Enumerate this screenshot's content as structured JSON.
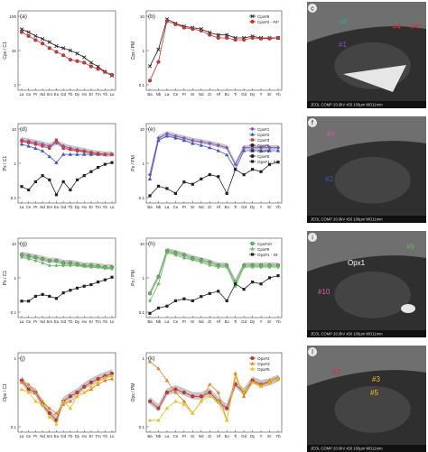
{
  "colors": {
    "black": "#222222",
    "red": "#d9312b",
    "blue": "#3a55c8",
    "purple": "#8b4fc0",
    "orange": "#e57f22",
    "green": "#62b85a",
    "teal": "#2ea79a",
    "yellow": "#e8c21a",
    "pink": "#d35bb0",
    "gray_band": "#9a9a9a",
    "sem_dark": "#2f2f2f"
  },
  "ree_ticks": [
    "La",
    "Ce",
    "Pr",
    "Nd",
    "Sm",
    "Eu",
    "Gd",
    "Tb",
    "Dy",
    "Ho",
    "Er",
    "Tm",
    "Yb",
    "Lu"
  ],
  "spider_ticks": [
    "Ba",
    "Nb",
    "La",
    "Ce",
    "Pr",
    "Sr",
    "Nd",
    "Zr",
    "Hf",
    "Eu",
    "Ti",
    "Gd",
    "Dy",
    "Y",
    "Er",
    "Yb"
  ],
  "panels": {
    "a": {
      "letter": "(a)",
      "ylabel": "Cpx / C1",
      "yticks": [
        "100",
        "10",
        "1"
      ]
    },
    "b": {
      "letter": "(b)",
      "ylabel": "Cpx / PM",
      "yticks": [
        "10",
        "1",
        "0.1"
      ]
    },
    "d": {
      "letter": "(d)",
      "ylabel": "Px / C1",
      "yticks": [
        "10",
        "1",
        "0.1"
      ]
    },
    "e": {
      "letter": "(e)",
      "ylabel": "Px / PM",
      "yticks": [
        "10",
        "1",
        "0.1"
      ]
    },
    "g": {
      "letter": "(g)",
      "ylabel": "Px / C1",
      "yticks": [
        "10",
        "1",
        "0.1"
      ]
    },
    "h": {
      "letter": "(h)",
      "ylabel": "Px / PM",
      "yticks": [
        "10",
        "1",
        "0.1"
      ]
    },
    "j": {
      "letter": "(j)",
      "ylabel": "Opx / C1",
      "yticks": [
        "1",
        "0.1"
      ]
    },
    "k": {
      "letter": "(k)",
      "ylabel": "Opx / PM",
      "yticks": [
        "1",
        "0.1"
      ]
    }
  },
  "legends": {
    "b": [
      "Cpx#8",
      "Cpx#4 - #4*"
    ],
    "e": [
      "Cpx#1",
      "Cpx#2",
      "Cpx#3",
      "Cpx#6",
      "Cpx#8",
      "Cpx#5",
      "Opx#1 - #4"
    ],
    "h": [
      "Cpx#10",
      "Cpx#9",
      "Opx#1 - #4"
    ],
    "k": [
      "Opx#2",
      "Opx#3",
      "Opx#5"
    ]
  },
  "sem": {
    "c": {
      "letter": "c",
      "labels": [
        "#8",
        "#4",
        "#4*",
        "#1"
      ],
      "footer": "JEOL COMP 20.0kV x50 100µm WD11mm"
    },
    "f": {
      "letter": "f",
      "labels": [
        "#1",
        "#2"
      ],
      "footer": "JEOL COMP 20.0kV x50 100µm WD11mm"
    },
    "i": {
      "letter": "i",
      "labels": [
        "Opx1",
        "#9",
        "#10"
      ],
      "footer": "JEOL COMP 20.0kV x50 100µm WD11mm"
    },
    "l": {
      "letter": "l",
      "labels": [
        "#2",
        "#3",
        "#5"
      ],
      "footer": "JEOL COMP 20.0kV x50 100µm WD11mm"
    }
  },
  "chart_data": [
    {
      "panel": "a",
      "type": "line",
      "x": [
        "La",
        "Ce",
        "Pr",
        "Nd",
        "Sm",
        "Eu",
        "Gd",
        "Tb",
        "Dy",
        "Ho",
        "Er",
        "Tm",
        "Yb",
        "Lu"
      ],
      "ylim": [
        0.5,
        200
      ],
      "log": true,
      "series": [
        {
          "name": "Cpx#8",
          "values": [
            50,
            40,
            30,
            24,
            19,
            14,
            12,
            10,
            8,
            6,
            4,
            3,
            2,
            1.5
          ]
        },
        {
          "name": "Cpx#4 - #4*",
          "values": [
            40,
            30,
            22,
            17,
            12,
            9,
            7,
            5,
            4.5,
            4,
            3,
            2.5,
            2,
            1.6
          ]
        }
      ]
    },
    {
      "panel": "b",
      "type": "line",
      "x": [
        "Ba",
        "Nb",
        "La",
        "Ce",
        "Pr",
        "Sr",
        "Nd",
        "Zr",
        "Hf",
        "Eu",
        "Ti",
        "Gd",
        "Dy",
        "Y",
        "Er",
        "Yb"
      ],
      "ylim": [
        0.02,
        40
      ],
      "log": true,
      "series": [
        {
          "name": "Cpx#8",
          "values": [
            0.2,
            1,
            18,
            12,
            9,
            8,
            7,
            5,
            4,
            4,
            3,
            3,
            3.5,
            3,
            3,
            3
          ]
        },
        {
          "name": "Cpx#4 - #4*",
          "values": [
            0.05,
            0.3,
            15,
            11,
            8,
            7,
            6,
            4,
            3,
            3,
            2.5,
            2.5,
            3,
            2.8,
            2.8,
            3
          ]
        }
      ]
    },
    {
      "panel": "d",
      "type": "line",
      "x": [
        "La",
        "Ce",
        "Pr",
        "Nd",
        "Sm",
        "Eu",
        "Gd",
        "Tb",
        "Dy",
        "Ho",
        "Er",
        "Tm",
        "Yb",
        "Lu"
      ],
      "ylim": [
        0.05,
        40
      ],
      "log": true,
      "series": [
        {
          "name": "Cpx#1",
          "values": [
            10,
            9,
            8,
            7,
            6,
            8,
            6,
            5,
            4.5,
            4,
            3.5,
            3.2,
            3,
            3
          ]
        },
        {
          "name": "Cpx#2",
          "values": [
            7,
            6,
            5,
            4,
            2.5,
            1.5,
            3,
            3,
            3,
            3,
            3,
            3,
            3,
            3
          ]
        },
        {
          "name": "Cpx#3",
          "values": [
            9,
            8,
            7,
            6,
            5,
            10,
            5,
            4.5,
            4,
            3.8,
            3.5,
            3.2,
            3,
            3
          ]
        },
        {
          "name": "Opx#1 - #4",
          "values": [
            0.2,
            0.15,
            0.3,
            0.5,
            0.35,
            0.1,
            0.3,
            0.15,
            0.35,
            0.5,
            0.7,
            1,
            1.3,
            1.5
          ]
        }
      ]
    },
    {
      "panel": "e",
      "type": "line",
      "x": [
        "Ba",
        "Nb",
        "La",
        "Ce",
        "Pr",
        "Sr",
        "Nd",
        "Zr",
        "Hf",
        "Eu",
        "Ti",
        "Gd",
        "Dy",
        "Y",
        "Er",
        "Yb"
      ],
      "ylim": [
        0.02,
        40
      ],
      "log": true,
      "series": [
        {
          "name": "Cpx#1",
          "values": [
            0.3,
            10,
            15,
            12,
            10,
            8,
            7,
            6,
            5,
            4,
            0.8,
            4,
            4,
            4,
            4,
            4
          ]
        },
        {
          "name": "Cpx#2",
          "values": [
            0.2,
            8,
            12,
            10,
            8,
            6,
            5,
            4,
            3,
            2,
            0.5,
            3,
            3,
            3,
            3,
            3
          ]
        },
        {
          "name": "Opx#1 - #4",
          "values": [
            0.04,
            0.1,
            0.08,
            0.05,
            0.15,
            0.12,
            0.2,
            0.3,
            0.25,
            0.05,
            0.5,
            0.3,
            0.5,
            0.4,
            0.8,
            1
          ]
        }
      ]
    },
    {
      "panel": "g",
      "type": "line",
      "x": [
        "La",
        "Ce",
        "Pr",
        "Nd",
        "Sm",
        "Eu",
        "Gd",
        "Tb",
        "Dy",
        "Ho",
        "Er",
        "Tm",
        "Yb",
        "Lu"
      ],
      "ylim": [
        0.05,
        40
      ],
      "log": true,
      "series": [
        {
          "name": "Cpx#10",
          "values": [
            10,
            9,
            8,
            7,
            6,
            6,
            5,
            5,
            4.5,
            4,
            4,
            3.8,
            3.5,
            3.5
          ]
        },
        {
          "name": "Cpx#9",
          "values": [
            8,
            7,
            6,
            5,
            4,
            4,
            4,
            4,
            4,
            3.8,
            3.5,
            3.5,
            3.2,
            3
          ]
        },
        {
          "name": "Opx#1 - #4",
          "values": [
            0.2,
            0.2,
            0.3,
            0.35,
            0.3,
            0.25,
            0.4,
            0.5,
            0.6,
            0.7,
            0.8,
            1,
            1.2,
            1.5
          ]
        }
      ]
    },
    {
      "panel": "h",
      "type": "line",
      "x": [
        "Ba",
        "Nb",
        "La",
        "Ce",
        "Pr",
        "Sr",
        "Nd",
        "Zr",
        "Hf",
        "Eu",
        "Ti",
        "Gd",
        "Dy",
        "Y",
        "Er",
        "Yb"
      ],
      "ylim": [
        0.02,
        40
      ],
      "log": true,
      "series": [
        {
          "name": "Cpx#10",
          "values": [
            0.2,
            1,
            12,
            10,
            8,
            6,
            5,
            4,
            3,
            3,
            0.6,
            3,
            3,
            3,
            3,
            3
          ]
        },
        {
          "name": "Cpx#9",
          "values": [
            0.1,
            0.5,
            10,
            8,
            6,
            5,
            4,
            3,
            2.5,
            2.5,
            0.4,
            2.5,
            2.5,
            2.5,
            2.5,
            2.5
          ]
        },
        {
          "name": "Opx#1 - #4",
          "values": [
            0.03,
            0.05,
            0.06,
            0.1,
            0.12,
            0.1,
            0.15,
            0.2,
            0.25,
            0.1,
            0.5,
            0.3,
            0.6,
            0.5,
            0.9,
            1.1
          ]
        }
      ]
    },
    {
      "panel": "j",
      "type": "line",
      "x": [
        "La",
        "Ce",
        "Pr",
        "Nd",
        "Sm",
        "Eu",
        "Gd",
        "Tb",
        "Dy",
        "Ho",
        "Er",
        "Tm",
        "Yb",
        "Lu"
      ],
      "ylim": [
        0.05,
        5
      ],
      "log": true,
      "series": [
        {
          "name": "Opx#2",
          "values": [
            1,
            0.6,
            0.5,
            0.25,
            0.15,
            0.1,
            0.3,
            0.4,
            0.5,
            0.7,
            0.9,
            1.1,
            1.3,
            1.5
          ]
        },
        {
          "name": "Opx#3",
          "values": [
            0.9,
            0.8,
            0.5,
            0.3,
            0.2,
            0.15,
            0.25,
            0.3,
            0.4,
            0.5,
            0.6,
            0.8,
            1,
            1.1
          ]
        },
        {
          "name": "Opx#5",
          "values": [
            0.6,
            0.5,
            0.3,
            0.25,
            0.12,
            0.08,
            0.3,
            0.2,
            0.4,
            0.5,
            0.7,
            0.9,
            1.2,
            1.3
          ]
        }
      ]
    },
    {
      "panel": "k",
      "type": "line",
      "x": [
        "Ba",
        "Nb",
        "La",
        "Ce",
        "Pr",
        "Sr",
        "Nd",
        "Zr",
        "Hf",
        "Eu",
        "Ti",
        "Gd",
        "Dy",
        "Y",
        "Er",
        "Yb"
      ],
      "ylim": [
        0.05,
        5
      ],
      "log": true,
      "series": [
        {
          "name": "Opx#2",
          "values": [
            0.3,
            0.2,
            0.5,
            0.6,
            0.5,
            0.4,
            0.4,
            0.5,
            0.3,
            0.2,
            0.8,
            0.5,
            1,
            0.8,
            0.9,
            1.1
          ]
        },
        {
          "name": "Opx#3",
          "values": [
            3,
            2,
            1,
            0.5,
            0.3,
            0.15,
            0.3,
            0.8,
            0.5,
            0.1,
            1.5,
            0.4,
            0.9,
            0.8,
            1,
            1.2
          ]
        },
        {
          "name": "Opx#5",
          "values": [
            0.1,
            0.1,
            0.2,
            0.3,
            0.25,
            0.15,
            0.3,
            0.4,
            0.3,
            0.1,
            1.2,
            0.5,
            0.9,
            0.7,
            0.9,
            1.1
          ]
        }
      ]
    }
  ]
}
